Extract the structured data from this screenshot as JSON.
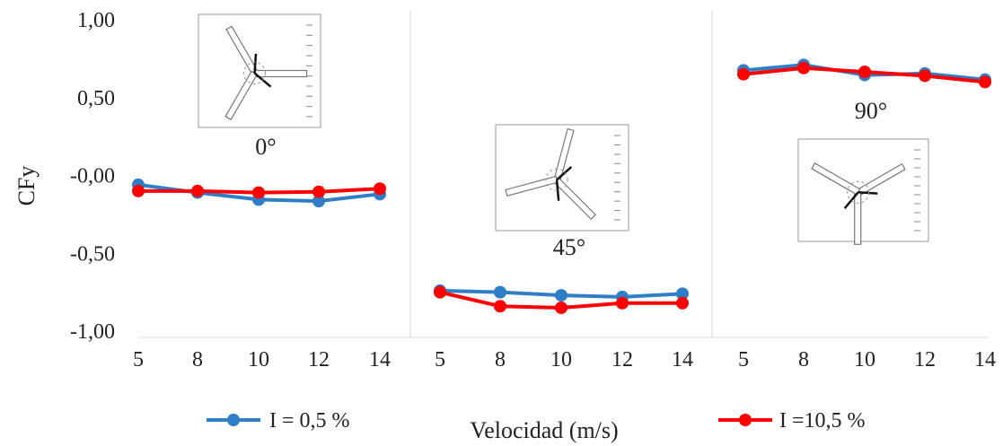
{
  "chart_data": {
    "type": "line",
    "ylabel": "CFy",
    "xlabel": "Velocidad (m/s)",
    "ylim": [
      -1.0,
      1.0
    ],
    "y_ticks": [
      "1,00",
      "0,50",
      "-0,00",
      "-0,50",
      "-1,00"
    ],
    "y_tick_values": [
      1.0,
      0.5,
      0.0,
      -0.5,
      -1.0
    ],
    "x_ticks": [
      "5",
      "8",
      "10",
      "12",
      "14"
    ],
    "legend_position": "bottom",
    "colors": {
      "low": "#2f7fc8",
      "high": "#ff0000"
    },
    "panels": [
      {
        "angle_label": "0°",
        "series": [
          {
            "name": "I = 0,5 %",
            "values": [
              -0.06,
              -0.11,
              -0.155,
              -0.165,
              -0.12
            ]
          },
          {
            "name": "I =10,5 %",
            "values": [
              -0.1,
              -0.1,
              -0.11,
              -0.105,
              -0.085
            ]
          }
        ]
      },
      {
        "angle_label": "45°",
        "series": [
          {
            "name": "I = 0,5 %",
            "values": [
              -0.74,
              -0.75,
              -0.77,
              -0.78,
              -0.76
            ]
          },
          {
            "name": "I =10,5 %",
            "values": [
              -0.75,
              -0.84,
              -0.85,
              -0.82,
              -0.82
            ]
          }
        ]
      },
      {
        "angle_label": "90°",
        "series": [
          {
            "name": "I = 0,5 %",
            "values": [
              0.675,
              0.71,
              0.645,
              0.655,
              0.615
            ]
          },
          {
            "name": "I =10,5 %",
            "values": [
              0.65,
              0.69,
              0.665,
              0.64,
              0.6
            ]
          }
        ]
      }
    ],
    "legend": [
      "I = 0,5 %",
      "I =10,5 %"
    ]
  }
}
